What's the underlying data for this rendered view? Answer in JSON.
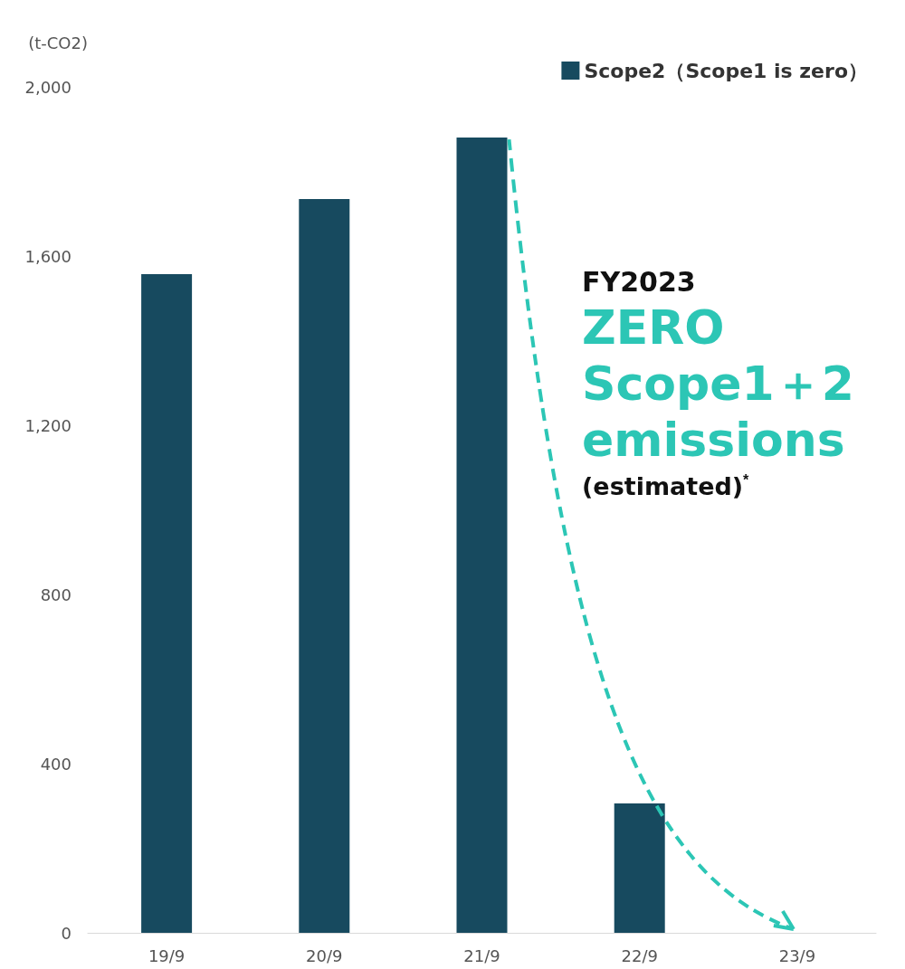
{
  "chart_data": {
    "type": "bar",
    "ylabel": "(t-CO2)",
    "categories": [
      "19/9",
      "20/9",
      "21/9",
      "22/9",
      "23/9"
    ],
    "series": [
      {
        "name": "Scope2（Scope1 is zero）",
        "color": "#174a5f",
        "values": [
          1557,
          1735,
          1880,
          306,
          0
        ]
      }
    ],
    "ylim": [
      0,
      2000
    ],
    "yticks": [
      0,
      400,
      800,
      {
        "value": 1200,
        "label": "1,200"
      },
      {
        "value": 1600,
        "label": "1,600"
      },
      {
        "value": 2000,
        "label": "2,000"
      }
    ],
    "grid": false,
    "legend": "top right",
    "annotations": [
      "FY2023",
      "ZERO",
      "Scope1＋2",
      "emissions",
      "(estimated)$^{*}$"
    ]
  }
}
